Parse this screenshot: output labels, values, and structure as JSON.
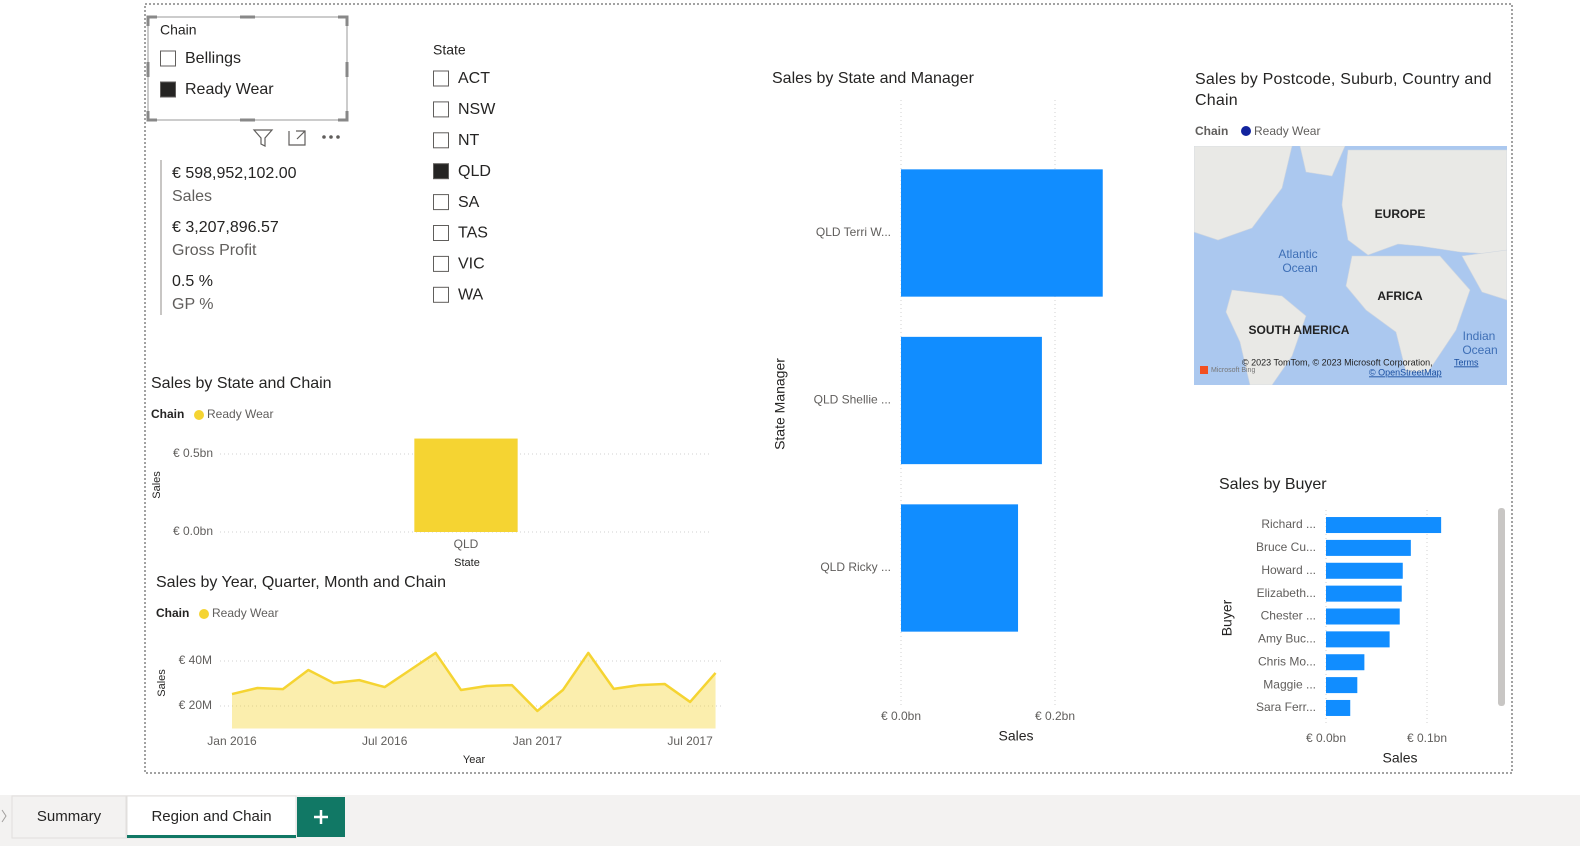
{
  "slicers": [
    {
      "title": "Chain",
      "items": [
        {
          "label": "Bellings",
          "checked": false
        },
        {
          "label": "Ready Wear",
          "checked": true
        }
      ]
    },
    {
      "title": "State",
      "items": [
        {
          "label": "ACT",
          "checked": false
        },
        {
          "label": "NSW",
          "checked": false
        },
        {
          "label": "NT",
          "checked": false
        },
        {
          "label": "QLD",
          "checked": true
        },
        {
          "label": "SA",
          "checked": false
        },
        {
          "label": "TAS",
          "checked": false
        },
        {
          "label": "VIC",
          "checked": false
        },
        {
          "label": "WA",
          "checked": false
        }
      ]
    }
  ],
  "cards": [
    {
      "value": "€ 598,952,102.00",
      "label": "Sales"
    },
    {
      "value": "€ 3,207,896.57",
      "label": "Gross Profit"
    },
    {
      "value": "0.5 %",
      "label": "GP %"
    }
  ],
  "chart_data": [
    {
      "type": "bar",
      "orientation": "vertical",
      "title": "Sales by State and Chain",
      "legend_title": "Chain",
      "categories": [
        "QLD"
      ],
      "series": [
        {
          "name": "Ready Wear",
          "color": "#F5D432",
          "values": [
            0.599
          ]
        }
      ],
      "x_label": "State",
      "y_label": "Sales",
      "ylim": [
        0,
        0.6
      ],
      "yticks": [
        {
          "value": 0,
          "label": "€ 0.0bn"
        },
        {
          "value": 0.5,
          "label": "€ 0.5bn"
        }
      ],
      "grid": true
    },
    {
      "type": "area",
      "title": "Sales by Year, Quarter, Month and Chain",
      "legend_title": "Chain",
      "x": [
        "2016-01",
        "2016-02",
        "2016-03",
        "2016-04",
        "2016-05",
        "2016-06",
        "2016-07",
        "2016-08",
        "2016-09",
        "2016-10",
        "2016-11",
        "2016-12",
        "2017-01",
        "2017-02",
        "2017-03",
        "2017-04",
        "2017-05",
        "2017-06",
        "2017-07",
        "2017-08"
      ],
      "series": [
        {
          "name": "Ready Wear",
          "color": "#F5D432",
          "values": [
            25.3,
            28,
            27.5,
            36,
            30.2,
            31.5,
            28.4,
            36,
            43.6,
            27.1,
            28.9,
            29.3,
            17.8,
            27.1,
            43.6,
            27.6,
            29.3,
            29.8,
            21.8,
            34.7
          ]
        }
      ],
      "x_label": "Year",
      "y_label": "Sales",
      "ylim": [
        10,
        45
      ],
      "yticks": [
        {
          "value": 20,
          "label": "€ 20M"
        },
        {
          "value": 40,
          "label": "€ 40M"
        }
      ],
      "xticks": [
        {
          "value": "2016-01",
          "label": "Jan 2016"
        },
        {
          "value": "2016-07",
          "label": "Jul 2016"
        },
        {
          "value": "2017-01",
          "label": "Jan 2017"
        },
        {
          "value": "2017-07",
          "label": "Jul 2017"
        }
      ],
      "grid": true
    },
    {
      "type": "bar",
      "orientation": "horizontal",
      "title": "Sales by State and Manager",
      "categories": [
        "QLD Terri W...",
        "QLD Shellie ...",
        "QLD Ricky ..."
      ],
      "series": [
        {
          "color": "#118DFF",
          "values": [
            0.262,
            0.183,
            0.152
          ]
        }
      ],
      "x_label": "Sales",
      "y_label": "State Manager",
      "xlim": [
        0,
        0.27
      ],
      "xticks": [
        {
          "value": 0,
          "label": "€ 0.0bn"
        },
        {
          "value": 0.2,
          "label": "€ 0.2bn"
        }
      ],
      "grid": true
    },
    {
      "type": "bar",
      "orientation": "horizontal",
      "title": "Sales by Buyer",
      "categories": [
        "Richard ...",
        "Bruce Cu...",
        "Howard ...",
        "Elizabeth...",
        "Chester ...",
        "Amy Buc...",
        "Chris Mo...",
        "Maggie ...",
        "Sara Ferr..."
      ],
      "series": [
        {
          "color": "#118DFF",
          "values": [
            0.114,
            0.084,
            0.076,
            0.075,
            0.073,
            0.063,
            0.038,
            0.031,
            0.024
          ]
        }
      ],
      "x_label": "Sales",
      "y_label": "Buyer",
      "xlim": [
        0,
        0.12
      ],
      "xticks": [
        {
          "value": 0,
          "label": "€ 0.0bn"
        },
        {
          "value": 0.1,
          "label": "€ 0.1bn"
        }
      ],
      "grid": true
    }
  ],
  "map": {
    "title": "Sales by Postcode, Suburb, Country and Chain",
    "legend_title": "Chain",
    "series": [
      {
        "name": "Ready Wear",
        "color": "#12239E"
      }
    ],
    "labels": [
      "EUROPE",
      "Atlantic",
      "Ocean",
      "AFRICA",
      "SOUTH AMERICA",
      "Indian",
      "Ocean"
    ],
    "attribution": "© 2023 TomTom, © 2023 Microsoft Corporation,",
    "terms": "Terms",
    "osm": "© OpenStreetMap",
    "logo": "Microsoft Bing"
  },
  "tabs": [
    "Summary",
    "Region and Chain"
  ],
  "active_tab": 1
}
